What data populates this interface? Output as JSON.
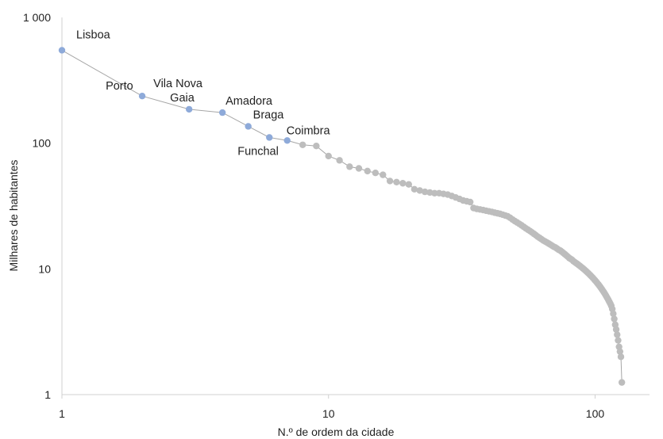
{
  "chart_data": {
    "type": "scatter",
    "xlabel": "N.º de ordem da cidade",
    "ylabel": "Milhares de habitantes",
    "x_scale": "log",
    "y_scale": "log",
    "xlim": [
      1,
      160
    ],
    "ylim": [
      1,
      1000
    ],
    "x_ticks": [
      "1",
      "10",
      "100"
    ],
    "y_ticks": [
      "1",
      "10",
      "100",
      "1 000"
    ],
    "grid": false,
    "legend": "none",
    "colors": {
      "highlight": "#8eaad9",
      "other": "#bdbdbd",
      "line": "#a6a6a6"
    },
    "labeled_points": [
      {
        "rank": 1,
        "value": 548,
        "label": "Lisboa"
      },
      {
        "rank": 2,
        "value": 237,
        "label": "Porto"
      },
      {
        "rank": 3,
        "value": 186,
        "label": "Vila Nova Gaia"
      },
      {
        "rank": 4,
        "value": 175,
        "label": "Amadora"
      },
      {
        "rank": 5,
        "value": 136,
        "label": "Braga"
      },
      {
        "rank": 6,
        "value": 111,
        "label": "Funchal"
      },
      {
        "rank": 7,
        "value": 105,
        "label": "Coimbra"
      }
    ],
    "other_points": {
      "rank_start": 8,
      "values": [
        97,
        95,
        79,
        73,
        65,
        63,
        60,
        58,
        56,
        50,
        49,
        48,
        47,
        43,
        42,
        41,
        40.5,
        40,
        40,
        39.5,
        39,
        38,
        37,
        36,
        35,
        34.5,
        34,
        30.5,
        30,
        29.7,
        29.4,
        29,
        28.7,
        28.4,
        28,
        27.7,
        27.4,
        27,
        26.6,
        26.2,
        25.5,
        24.7,
        24,
        23.4,
        22.8,
        22.2,
        21.6,
        21,
        20.5,
        20,
        19.5,
        19,
        18.5,
        18,
        17.6,
        17.2,
        16.8,
        16.5,
        16.2,
        15.9,
        15.6,
        15.3,
        15,
        14.8,
        14.5,
        14.2,
        14,
        13.7,
        13.4,
        13.1,
        12.8,
        12.5,
        12.2,
        12,
        11.8,
        11.5,
        11.3,
        11.1,
        10.9,
        10.7,
        10.5,
        10.3,
        10.1,
        9.9,
        9.7,
        9.5,
        9.3,
        9.1,
        8.9,
        8.7,
        8.5,
        8.3,
        8.1,
        7.9,
        7.7,
        7.5,
        7.3,
        7.1,
        6.9,
        6.7,
        6.5,
        6.3,
        6.1,
        5.9,
        5.7,
        5.5,
        5.3,
        5.1,
        4.8,
        4.4,
        4.0,
        3.6,
        3.3,
        3.0,
        2.7,
        2.4,
        2.2,
        2.0,
        1.25
      ]
    }
  }
}
